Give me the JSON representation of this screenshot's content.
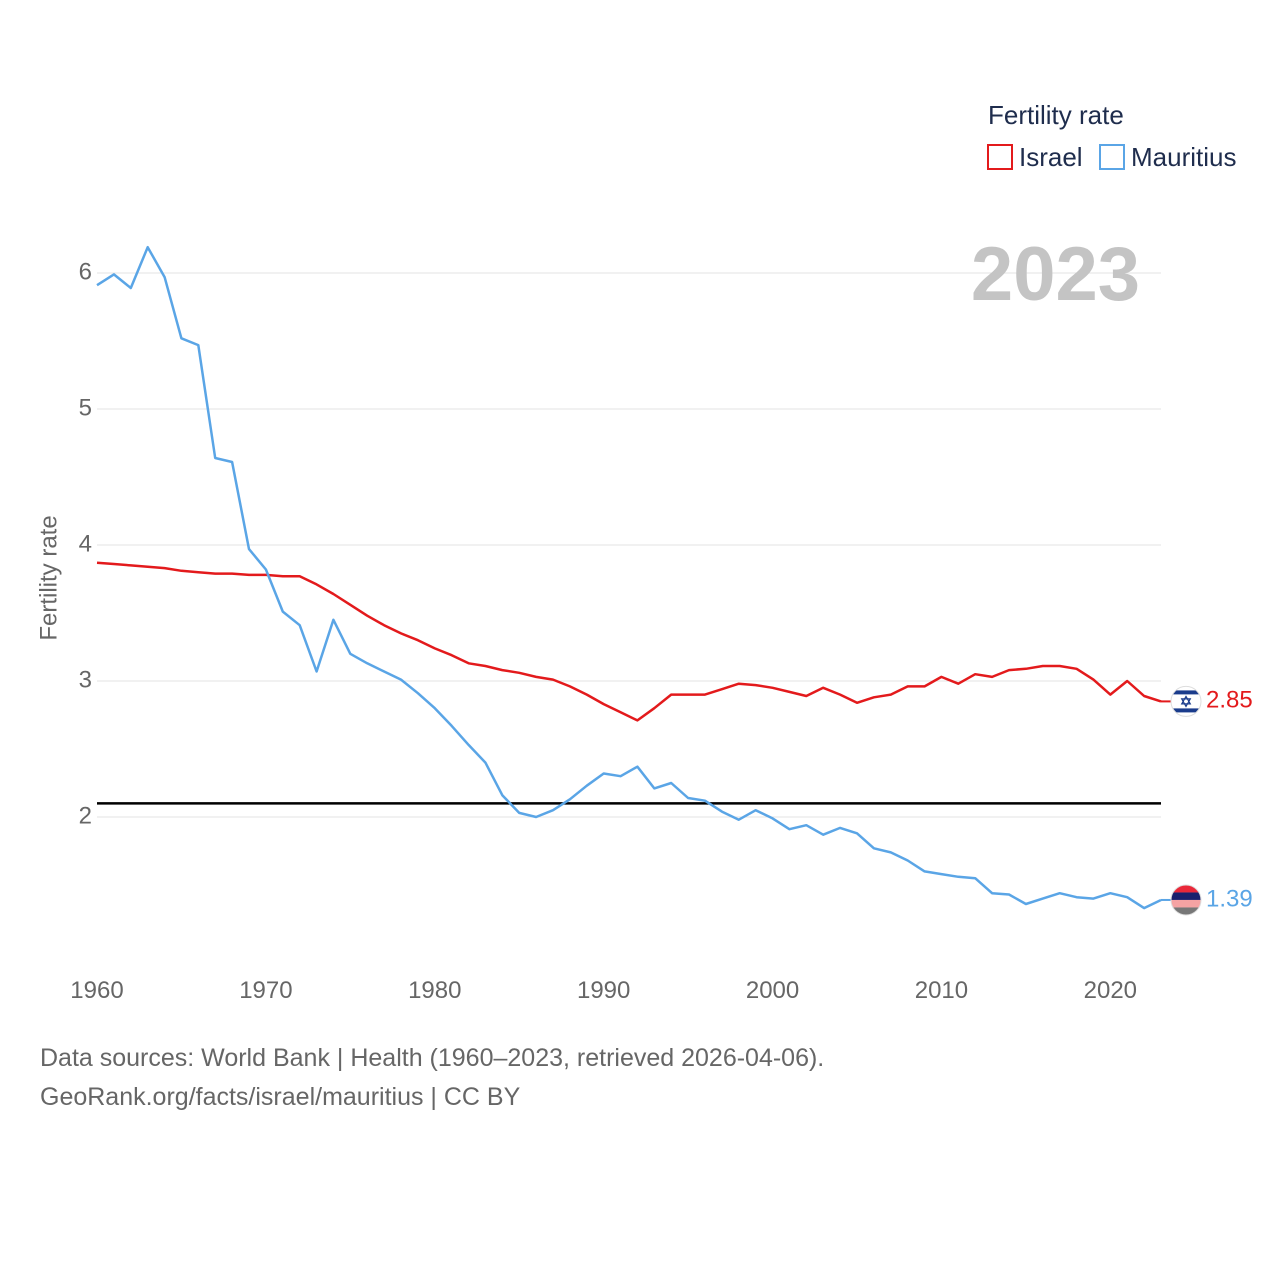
{
  "chart_data": {
    "type": "line",
    "title": "",
    "legend_title": "Fertility rate",
    "legend_position": "top-right",
    "ylabel": "Fertility rate",
    "xlabel": "",
    "xlim": [
      1960,
      2023
    ],
    "ylim": [
      1,
      6.5
    ],
    "yticks": [
      2,
      3,
      4,
      5,
      6
    ],
    "xticks": [
      1960,
      1970,
      1980,
      1990,
      2000,
      2010,
      2020
    ],
    "current_year": "2023",
    "reference_line": 2.1,
    "grid": true,
    "x": [
      1960,
      1961,
      1962,
      1963,
      1964,
      1965,
      1966,
      1967,
      1968,
      1969,
      1970,
      1971,
      1972,
      1973,
      1974,
      1975,
      1976,
      1977,
      1978,
      1979,
      1980,
      1981,
      1982,
      1983,
      1984,
      1985,
      1986,
      1987,
      1988,
      1989,
      1990,
      1991,
      1992,
      1993,
      1994,
      1995,
      1996,
      1997,
      1998,
      1999,
      2000,
      2001,
      2002,
      2003,
      2004,
      2005,
      2006,
      2007,
      2008,
      2009,
      2010,
      2011,
      2012,
      2013,
      2014,
      2015,
      2016,
      2017,
      2018,
      2019,
      2020,
      2021,
      2022,
      2023
    ],
    "series": [
      {
        "name": "Israel",
        "color": "#e31a1c",
        "end_label": "2.85",
        "flag": "israel-flag-icon",
        "values": [
          3.87,
          3.86,
          3.85,
          3.84,
          3.83,
          3.81,
          3.8,
          3.79,
          3.79,
          3.78,
          3.78,
          3.77,
          3.77,
          3.71,
          3.64,
          3.56,
          3.48,
          3.41,
          3.35,
          3.3,
          3.24,
          3.19,
          3.13,
          3.11,
          3.08,
          3.06,
          3.03,
          3.01,
          2.96,
          2.9,
          2.83,
          2.77,
          2.71,
          2.8,
          2.9,
          2.9,
          2.9,
          2.94,
          2.98,
          2.97,
          2.95,
          2.92,
          2.89,
          2.95,
          2.9,
          2.84,
          2.88,
          2.9,
          2.96,
          2.96,
          3.03,
          2.98,
          3.05,
          3.03,
          3.08,
          3.09,
          3.11,
          3.11,
          3.09,
          3.01,
          2.9,
          3.0,
          2.89,
          2.85
        ]
      },
      {
        "name": "Mauritius",
        "color": "#5aa5e6",
        "end_label": "1.39",
        "flag": "mauritius-flag-icon",
        "values": [
          5.91,
          5.99,
          5.89,
          6.19,
          5.97,
          5.52,
          5.47,
          4.64,
          4.61,
          3.97,
          3.82,
          3.51,
          3.41,
          3.07,
          3.45,
          3.2,
          3.13,
          3.07,
          3.01,
          2.91,
          2.8,
          2.67,
          2.53,
          2.4,
          2.16,
          2.03,
          2.0,
          2.05,
          2.13,
          2.23,
          2.32,
          2.3,
          2.37,
          2.21,
          2.25,
          2.14,
          2.12,
          2.04,
          1.98,
          2.05,
          1.99,
          1.91,
          1.94,
          1.87,
          1.92,
          1.88,
          1.77,
          1.74,
          1.68,
          1.6,
          1.58,
          1.56,
          1.55,
          1.44,
          1.43,
          1.36,
          1.4,
          1.44,
          1.41,
          1.4,
          1.44,
          1.41,
          1.33,
          1.39
        ]
      }
    ]
  },
  "footer": {
    "line1": "Data sources: World Bank | Health (1960–2023, retrieved 2026-04-06).",
    "line2": "GeoRank.org/facts/israel/mauritius | CC BY"
  }
}
